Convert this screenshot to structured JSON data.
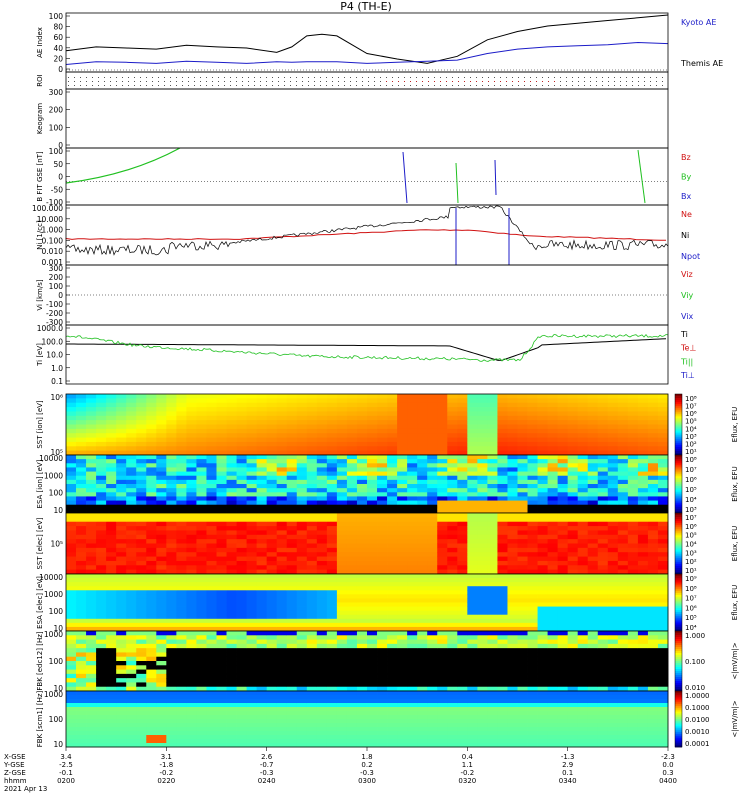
{
  "title": "P4 (TH-E)",
  "footer": {
    "date": "2021 Apr 13",
    "row_labels": [
      "X-GSE",
      "Y-GSE",
      "Z-GSE",
      "hhmm"
    ],
    "columns": [
      {
        "x": "3.4",
        "y": "-2.5",
        "z": "-0.1",
        "t": "0200"
      },
      {
        "x": "3.1",
        "y": "-1.8",
        "z": "-0.2",
        "t": "0220"
      },
      {
        "x": "2.6",
        "y": "-0.7",
        "z": "-0.3",
        "t": "0240"
      },
      {
        "x": "1.8",
        "y": "0.2",
        "z": "-0.3",
        "t": "0300"
      },
      {
        "x": "0.4",
        "y": "1.1",
        "z": "-0.2",
        "t": "0320"
      },
      {
        "x": "-1.3",
        "y": "2.9",
        "z": "0.1",
        "t": "0340"
      },
      {
        "x": "-2.3",
        "y": "0.0",
        "z": "0.3",
        "t": "0400"
      }
    ]
  },
  "colors": {
    "black": "#000000",
    "blue": "#1c1cc8",
    "red": "#d01010",
    "green": "#20c020",
    "navy": "#000090"
  },
  "chart_data": [
    {
      "type": "line",
      "ylabel": "AE Index",
      "ylim": [
        0,
        100
      ],
      "yticks": [
        "100",
        "80",
        "60",
        "40",
        "20",
        "0"
      ],
      "legend": [
        {
          "name": "Kyoto AE",
          "color": "#1c1cc8"
        },
        {
          "name": "Themis AE",
          "color": "#000000"
        }
      ],
      "x_hours": [
        2.0,
        2.1,
        2.2,
        2.3,
        2.4,
        2.5,
        2.6,
        2.7,
        2.75,
        2.8,
        2.85,
        2.9,
        3.0,
        3.1,
        3.2,
        3.3,
        3.4,
        3.5,
        3.6,
        3.7,
        3.8,
        3.9,
        4.0
      ],
      "series": [
        {
          "name": "Themis AE",
          "color": "#000000",
          "values": [
            35,
            42,
            40,
            38,
            45,
            42,
            40,
            32,
            42,
            62,
            65,
            62,
            30,
            20,
            12,
            25,
            55,
            70,
            80,
            85,
            90,
            95,
            100
          ]
        },
        {
          "name": "Kyoto AE",
          "color": "#1c1cc8",
          "values": [
            10,
            15,
            14,
            12,
            16,
            14,
            12,
            15,
            14,
            15,
            15,
            15,
            12,
            14,
            16,
            18,
            30,
            38,
            42,
            44,
            46,
            50,
            48
          ]
        }
      ]
    },
    {
      "type": "strip",
      "ylabel": "ROI"
    },
    {
      "type": "line",
      "ylabel": "Keogram",
      "yticks": [
        "300",
        "200",
        "100",
        "0"
      ]
    },
    {
      "type": "line",
      "ylabel": "B FIT GSE [nT]",
      "ylim": [
        -100,
        100
      ],
      "yticks": [
        "100",
        "50",
        "0",
        "-50",
        "-100"
      ],
      "legend": [
        {
          "name": "Bz",
          "color": "#d01010"
        },
        {
          "name": "By",
          "color": "#20c020"
        },
        {
          "name": "Bx",
          "color": "#1c1cc8"
        }
      ]
    },
    {
      "type": "line",
      "ylabel": "Ni [1/cc]",
      "scale": "log",
      "yticks": [
        "100.000",
        "10.000",
        "1.000",
        "0.100",
        "0.010",
        "0.001"
      ],
      "legend": [
        {
          "name": "Ne",
          "color": "#d01010"
        },
        {
          "name": "Ni",
          "color": "#000000"
        },
        {
          "name": "Npot",
          "color": "#1c1cc8"
        }
      ],
      "extra_label": "Npot"
    },
    {
      "type": "line",
      "ylabel": "Vi [km/s]",
      "ylim": [
        -300,
        300
      ],
      "yticks": [
        "300",
        "200",
        "100",
        "0",
        "-100",
        "-200",
        "-300"
      ],
      "legend": [
        {
          "name": "Viz",
          "color": "#d01010"
        },
        {
          "name": "Viy",
          "color": "#20c020"
        },
        {
          "name": "Vix",
          "color": "#1c1cc8"
        }
      ]
    },
    {
      "type": "line",
      "ylabel": "Ti [eV]",
      "scale": "log",
      "yticks": [
        "1000.0",
        "100.0",
        "10.0",
        "1.0",
        "0.1"
      ],
      "legend": [
        {
          "name": "Ti",
          "color": "#000000"
        },
        {
          "name": "Te⊥",
          "color": "#d01010"
        },
        {
          "name": "Ti||",
          "color": "#20c020"
        },
        {
          "name": "Ti⊥",
          "color": "#1c1cc8"
        }
      ]
    },
    {
      "type": "heatmap",
      "ylabel": "SST [ion] [eV]",
      "yticks": [
        "10⁶",
        "10⁵"
      ],
      "colorbar": [
        "10⁸",
        "10⁷",
        "10⁶",
        "10⁵",
        "10⁴",
        "10³",
        "10²",
        "10¹"
      ],
      "cbar_label": "Eflux, EFU"
    },
    {
      "type": "heatmap",
      "ylabel": "ESA [ion] [eV]",
      "yticks": [
        "10000",
        "1000",
        "100",
        "10"
      ],
      "colorbar": [
        "10⁸",
        "10⁷",
        "10⁶",
        "10⁵",
        "10⁴",
        "10³"
      ],
      "cbar_label": "Eflux, EFU"
    },
    {
      "type": "heatmap",
      "ylabel": "SST [elec] [eV]",
      "yticks": [
        "10⁵"
      ],
      "colorbar": [
        "10⁷",
        "10⁶",
        "10⁵",
        "10⁴",
        "10³",
        "10²",
        "10¹"
      ],
      "cbar_label": "Eflux, EFU"
    },
    {
      "type": "heatmap",
      "ylabel": "ESA [elec] [eV]",
      "yticks": [
        "10000",
        "1000",
        "100",
        "10"
      ],
      "colorbar": [
        "10⁹",
        "10⁸",
        "10⁷",
        "10⁶",
        "10⁵",
        "10⁴"
      ],
      "cbar_label": "Eflux, EFU"
    },
    {
      "type": "heatmap",
      "ylabel": "FBK [edc12] [Hz]",
      "yticks": [
        "1000",
        "100",
        "10"
      ],
      "colorbar": [
        "1.000",
        "0.100",
        "0.010"
      ],
      "cbar_label": "<|mV/m|>"
    },
    {
      "type": "heatmap",
      "ylabel": "FBK [scm1] [Hz]",
      "yticks": [
        "1000",
        "100",
        "10"
      ],
      "colorbar": [
        "1.0000",
        "0.1000",
        "0.0100",
        "0.0010",
        "0.0001"
      ],
      "cbar_label": "<|mV/m|>"
    }
  ]
}
